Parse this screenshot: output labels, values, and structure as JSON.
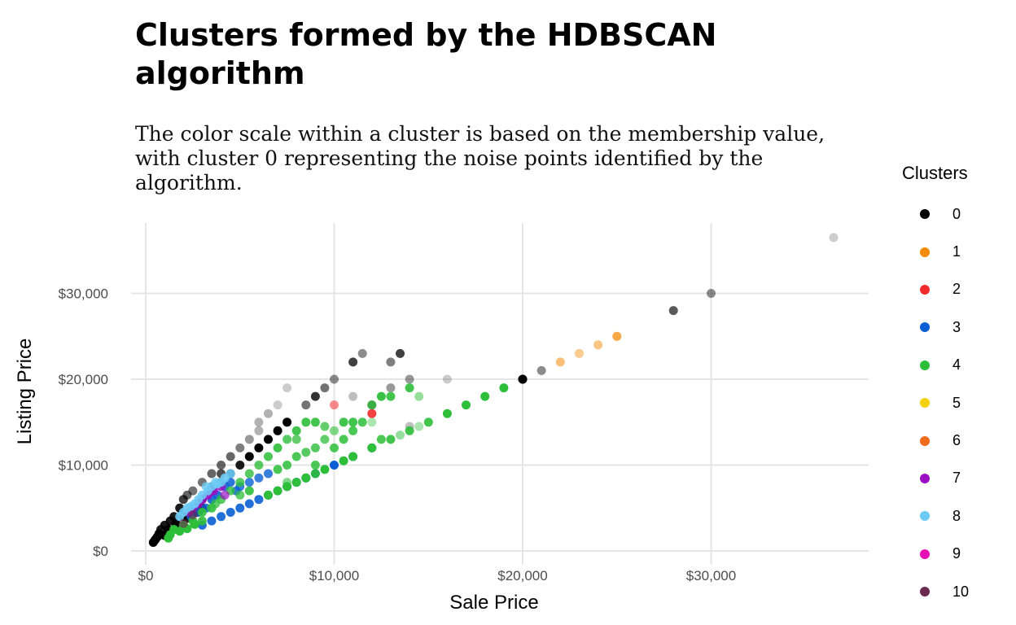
{
  "chart_data": {
    "type": "scatter",
    "title": "Clusters formed by the HDBSCAN algorithm",
    "subtitle": "The color scale within a cluster is based on the membership value, with cluster 0 representing the noise points identified by the algorithm.",
    "xlabel": "Sale Price",
    "ylabel": "Listing Price",
    "xlim": [
      -1000,
      38000
    ],
    "ylim": [
      -500,
      38000
    ],
    "x_ticks": [
      {
        "value": 0,
        "label": "$0"
      },
      {
        "value": 10000,
        "label": "$10,000"
      },
      {
        "value": 20000,
        "label": "$20,000"
      },
      {
        "value": 30000,
        "label": "$30,000"
      }
    ],
    "y_ticks": [
      {
        "value": 0,
        "label": "$0"
      },
      {
        "value": 10000,
        "label": "$10,000"
      },
      {
        "value": 20000,
        "label": "$20,000"
      },
      {
        "value": 30000,
        "label": "$30,000"
      }
    ],
    "grid": true,
    "legend": {
      "title": "Clusters",
      "position": "right",
      "entries": [
        {
          "label": "0",
          "color": "#000000"
        },
        {
          "label": "1",
          "color": "#F58A07"
        },
        {
          "label": "2",
          "color": "#F22C2C"
        },
        {
          "label": "3",
          "color": "#0A5FD4"
        },
        {
          "label": "4",
          "color": "#2DBE3A"
        },
        {
          "label": "5",
          "color": "#F5D00F"
        },
        {
          "label": "6",
          "color": "#F26B1D"
        },
        {
          "label": "7",
          "color": "#9B0FC2"
        },
        {
          "label": "8",
          "color": "#6CCBF5"
        },
        {
          "label": "9",
          "color": "#E60FB4"
        },
        {
          "label": "10",
          "color": "#6B2A4F"
        }
      ]
    },
    "series": [
      {
        "cluster": "0",
        "color": "#000000",
        "points": [
          [
            36500,
            36500,
            0.2
          ],
          [
            30000,
            30000,
            0.45
          ],
          [
            28000,
            28000,
            0.65
          ],
          [
            21000,
            21000,
            0.45
          ],
          [
            20000,
            20000,
            1
          ],
          [
            20000,
            20000,
            0.9
          ],
          [
            14000,
            14500,
            0.25
          ],
          [
            16000,
            20000,
            0.2
          ],
          [
            11000,
            22000,
            0.75
          ],
          [
            11500,
            23000,
            0.45
          ],
          [
            13000,
            22000,
            0.5
          ],
          [
            13500,
            23000,
            0.75
          ],
          [
            13000,
            19000,
            0.4
          ],
          [
            14000,
            20000,
            0.4
          ],
          [
            12000,
            17000,
            0.55
          ],
          [
            11000,
            18000,
            0.25
          ],
          [
            10000,
            20000,
            0.45
          ],
          [
            9500,
            19000,
            0.55
          ],
          [
            9000,
            18000,
            0.8
          ],
          [
            8500,
            17000,
            0.55
          ],
          [
            7500,
            19000,
            0.2
          ],
          [
            7000,
            17000,
            0.2
          ],
          [
            6500,
            16000,
            0.3
          ],
          [
            6000,
            15000,
            0.3
          ],
          [
            7500,
            15000,
            1
          ],
          [
            7000,
            14000,
            1
          ],
          [
            6500,
            13000,
            1
          ],
          [
            6000,
            12000,
            1
          ],
          [
            5500,
            11000,
            1
          ],
          [
            5000,
            10000,
            0.9
          ],
          [
            4500,
            9000,
            0.85
          ],
          [
            4000,
            8000,
            0.8
          ],
          [
            3500,
            7000,
            0.8
          ],
          [
            3000,
            6000,
            0.8
          ],
          [
            2500,
            5000,
            0.85
          ],
          [
            2000,
            4000,
            0.85
          ],
          [
            5500,
            13000,
            0.4
          ],
          [
            5000,
            12000,
            0.5
          ],
          [
            4500,
            11000,
            0.6
          ],
          [
            4000,
            10000,
            0.6
          ],
          [
            3500,
            9000,
            0.6
          ],
          [
            3000,
            8000,
            0.55
          ],
          [
            2500,
            7000,
            0.55
          ],
          [
            2200,
            6500,
            0.6
          ],
          [
            2000,
            6000,
            0.75
          ],
          [
            1800,
            5000,
            0.9
          ],
          [
            1500,
            4000,
            0.9
          ],
          [
            1300,
            3500,
            0.9
          ],
          [
            1000,
            3000,
            0.9
          ],
          [
            800,
            2500,
            0.9
          ],
          [
            700,
            2000,
            1
          ],
          [
            600,
            1600,
            1
          ],
          [
            500,
            1300,
            1
          ],
          [
            400,
            1000,
            1
          ],
          [
            1000,
            1800,
            1
          ],
          [
            1200,
            2500,
            1
          ],
          [
            1600,
            3200,
            1
          ],
          [
            2200,
            3800,
            0.9
          ],
          [
            3000,
            5000,
            0.9
          ],
          [
            2700,
            4500,
            0.85
          ],
          [
            6000,
            14000,
            0.3
          ],
          [
            4000,
            9000,
            0.7
          ],
          [
            3500,
            7500,
            0.7
          ],
          [
            1800,
            2500,
            0.9
          ]
        ]
      },
      {
        "cluster": "1",
        "color": "#F58A07",
        "points": [
          [
            22000,
            22000,
            0.55
          ],
          [
            23000,
            23000,
            0.45
          ],
          [
            24000,
            24000,
            0.5
          ],
          [
            25000,
            25000,
            0.75
          ]
        ]
      },
      {
        "cluster": "2",
        "color": "#F22C2C",
        "points": [
          [
            12000,
            16000,
            0.9
          ],
          [
            10000,
            17000,
            0.55
          ]
        ]
      },
      {
        "cluster": "3",
        "color": "#0A5FD4",
        "points": [
          [
            10000,
            10000,
            1
          ],
          [
            9000,
            9000,
            0.9
          ],
          [
            8500,
            8500,
            0.9
          ],
          [
            8000,
            8000,
            0.9
          ],
          [
            7500,
            7500,
            0.9
          ],
          [
            7000,
            7000,
            0.9
          ],
          [
            6500,
            6500,
            0.9
          ],
          [
            6000,
            6000,
            0.9
          ],
          [
            5500,
            5500,
            0.9
          ],
          [
            5000,
            5000,
            0.9
          ],
          [
            4500,
            4500,
            0.9
          ],
          [
            4000,
            4000,
            0.9
          ],
          [
            3500,
            3500,
            0.9
          ],
          [
            3000,
            3000,
            0.9
          ],
          [
            6500,
            9000,
            0.8
          ],
          [
            6000,
            8500,
            0.8
          ],
          [
            5500,
            8000,
            0.8
          ],
          [
            5000,
            7500,
            0.8
          ],
          [
            4800,
            7000,
            0.85
          ],
          [
            4500,
            8000,
            0.85
          ],
          [
            4200,
            7500,
            0.85
          ],
          [
            3800,
            6500,
            0.9
          ],
          [
            3500,
            6000,
            0.9
          ],
          [
            3200,
            5000,
            0.85
          ],
          [
            2800,
            4500,
            0.85
          ],
          [
            2400,
            4000,
            0.85
          ],
          [
            12000,
            12000,
            0.75
          ],
          [
            11000,
            11000,
            0.75
          ]
        ]
      },
      {
        "cluster": "4",
        "color": "#2DBE3A",
        "points": [
          [
            19000,
            19000,
            1
          ],
          [
            18000,
            18000,
            1
          ],
          [
            17000,
            17000,
            1
          ],
          [
            16000,
            16000,
            1
          ],
          [
            15000,
            15000,
            0.9
          ],
          [
            14000,
            14000,
            0.9
          ],
          [
            13000,
            13000,
            0.9
          ],
          [
            12000,
            12000,
            1
          ],
          [
            11000,
            11000,
            1
          ],
          [
            10500,
            10500,
            1
          ],
          [
            9500,
            9500,
            1
          ],
          [
            9000,
            9000,
            0.9
          ],
          [
            8500,
            8500,
            1
          ],
          [
            8000,
            8000,
            1
          ],
          [
            7500,
            7500,
            1
          ],
          [
            7000,
            7000,
            1
          ],
          [
            6500,
            6500,
            1
          ],
          [
            13500,
            13500,
            0.5
          ],
          [
            12000,
            15000,
            0.4
          ],
          [
            14500,
            18000,
            0.5
          ],
          [
            14000,
            19000,
            0.9
          ],
          [
            13000,
            18000,
            0.9
          ],
          [
            12500,
            18000,
            0.95
          ],
          [
            12000,
            17000,
            0.8
          ],
          [
            11000,
            15000,
            0.9
          ],
          [
            10000,
            14000,
            0.6
          ],
          [
            9500,
            14500,
            0.75
          ],
          [
            9000,
            15000,
            0.9
          ],
          [
            8500,
            15000,
            0.9
          ],
          [
            8000,
            14000,
            0.9
          ],
          [
            7500,
            13000,
            0.8
          ],
          [
            7000,
            12000,
            0.9
          ],
          [
            6500,
            11000,
            0.85
          ],
          [
            6000,
            10000,
            0.8
          ],
          [
            5500,
            9000,
            0.8
          ],
          [
            5000,
            8000,
            0.8
          ],
          [
            4500,
            7000,
            0.8
          ],
          [
            4000,
            6000,
            0.8
          ],
          [
            3500,
            5000,
            0.9
          ],
          [
            3000,
            4500,
            0.9
          ],
          [
            2500,
            3500,
            0.9
          ],
          [
            2000,
            3000,
            1
          ],
          [
            1500,
            2500,
            1
          ],
          [
            1300,
            1900,
            1
          ],
          [
            1200,
            1500,
            1
          ],
          [
            1800,
            2300,
            1
          ],
          [
            2600,
            3100,
            1
          ],
          [
            2200,
            2600,
            1
          ],
          [
            3000,
            3500,
            0.9
          ],
          [
            9000,
            12000,
            0.8
          ],
          [
            8500,
            11500,
            0.8
          ],
          [
            8000,
            11000,
            0.85
          ],
          [
            7500,
            10000,
            0.85
          ],
          [
            7000,
            9500,
            0.85
          ],
          [
            10500,
            15000,
            0.9
          ],
          [
            11500,
            15000,
            0.85
          ],
          [
            8000,
            13000,
            0.75
          ],
          [
            9500,
            13000,
            0.75
          ],
          [
            10500,
            13000,
            0.85
          ],
          [
            11000,
            14000,
            0.85
          ],
          [
            12500,
            13000,
            0.85
          ],
          [
            14500,
            14500,
            0.4
          ],
          [
            7500,
            8000,
            0.6
          ],
          [
            9000,
            10000,
            0.85
          ],
          [
            10000,
            12000,
            0.85
          ],
          [
            5500,
            7000,
            0.9
          ],
          [
            5000,
            6500,
            0.75
          ],
          [
            3700,
            5500,
            0.75
          ]
        ]
      },
      {
        "cluster": "7",
        "color": "#9B0FC2",
        "points": [
          [
            4000,
            7500,
            0.85
          ],
          [
            3600,
            7000,
            0.9
          ],
          [
            3300,
            6500,
            0.9
          ],
          [
            3000,
            6000,
            0.9
          ],
          [
            2800,
            5500,
            0.9
          ],
          [
            2500,
            5000,
            0.85
          ],
          [
            2300,
            4500,
            0.85
          ],
          [
            4200,
            6500,
            0.7
          ]
        ]
      },
      {
        "cluster": "8",
        "color": "#6CCBF5",
        "points": [
          [
            4500,
            9000,
            0.9
          ],
          [
            4200,
            8500,
            0.9
          ],
          [
            4000,
            8000,
            0.9
          ],
          [
            3800,
            7800,
            0.9
          ],
          [
            3500,
            7500,
            0.9
          ],
          [
            3300,
            7000,
            0.9
          ],
          [
            3000,
            6500,
            0.9
          ],
          [
            2800,
            6000,
            0.9
          ],
          [
            2600,
            5500,
            0.9
          ],
          [
            2400,
            5200,
            0.9
          ],
          [
            2200,
            5000,
            0.9
          ],
          [
            2000,
            4500,
            0.9
          ],
          [
            1800,
            4000,
            0.9
          ],
          [
            3700,
            8000,
            0.85
          ],
          [
            3200,
            7500,
            0.8
          ]
        ]
      },
      {
        "cluster": "10",
        "color": "#6B2A4F",
        "points": [
          [
            2500,
            4200,
            0.6
          ],
          [
            2000,
            3200,
            0.6
          ]
        ]
      }
    ]
  }
}
